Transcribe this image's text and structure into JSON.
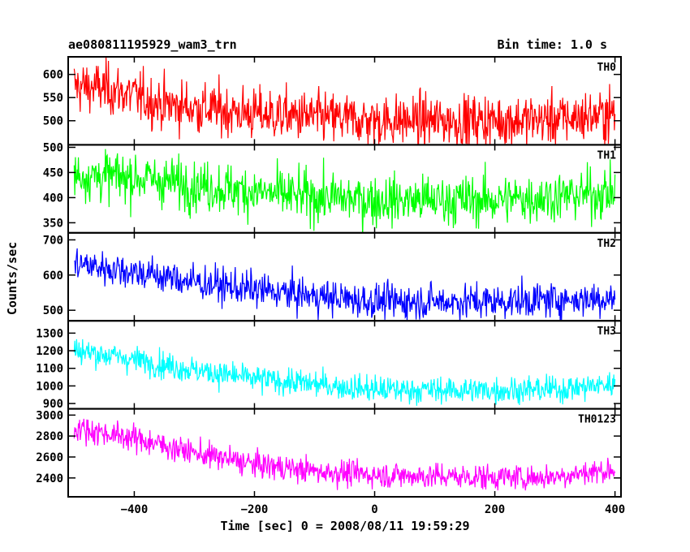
{
  "chart_data": {
    "type": "line",
    "title": "ae080811195929_wam3_trn",
    "subtitle": "Bin time: 1.0 s",
    "xlabel": "Time [sec] 0 = 2008/08/11 19:59:29",
    "ylabel": "Counts/sec",
    "xlim": [
      -510,
      410
    ],
    "x_ticks": [
      -400,
      -200,
      0,
      200,
      400
    ],
    "x_range": [
      -500,
      400
    ],
    "bin_time_s": 1.0,
    "grid": false,
    "panels": [
      {
        "name": "TH0",
        "color": "#ff0000",
        "ylim": [
          448,
          638
        ],
        "y_ticks": [
          500,
          550,
          600
        ],
        "trend": [
          [
            -500,
            575
          ],
          [
            -440,
            568
          ],
          [
            -350,
            535
          ],
          [
            -200,
            515
          ],
          [
            0,
            500
          ],
          [
            150,
            500
          ],
          [
            300,
            503
          ],
          [
            400,
            515
          ]
        ],
        "noise_sd": 28
      },
      {
        "name": "TH1",
        "color": "#00ff00",
        "ylim": [
          330,
          505
        ],
        "y_ticks": [
          350,
          400,
          450,
          500
        ],
        "trend": [
          [
            -500,
            445
          ],
          [
            -400,
            440
          ],
          [
            -300,
            425
          ],
          [
            -150,
            405
          ],
          [
            0,
            395
          ],
          [
            200,
            395
          ],
          [
            400,
            410
          ]
        ],
        "noise_sd": 25
      },
      {
        "name": "TH2",
        "color": "#0000ff",
        "ylim": [
          470,
          720
        ],
        "y_ticks": [
          500,
          600,
          700
        ],
        "trend": [
          [
            -500,
            632
          ],
          [
            -400,
            610
          ],
          [
            -300,
            580
          ],
          [
            -200,
            558
          ],
          [
            -100,
            540
          ],
          [
            0,
            525
          ],
          [
            200,
            525
          ],
          [
            400,
            535
          ]
        ],
        "noise_sd": 25
      },
      {
        "name": "TH3",
        "color": "#00ffff",
        "ylim": [
          870,
          1370
        ],
        "y_ticks": [
          900,
          1000,
          1100,
          1200,
          1300
        ],
        "trend": [
          [
            -500,
            1205
          ],
          [
            -400,
            1150
          ],
          [
            -300,
            1090
          ],
          [
            -200,
            1040
          ],
          [
            -100,
            1010
          ],
          [
            0,
            980
          ],
          [
            150,
            975
          ],
          [
            300,
            980
          ],
          [
            400,
            1010
          ]
        ],
        "noise_sd": 38
      },
      {
        "name": "TH0123",
        "color": "#ff00ff",
        "ylim": [
          2220,
          3060
        ],
        "y_ticks": [
          2400,
          2600,
          2800,
          3000
        ],
        "trend": [
          [
            -500,
            2880
          ],
          [
            -400,
            2780
          ],
          [
            -300,
            2640
          ],
          [
            -200,
            2530
          ],
          [
            -100,
            2465
          ],
          [
            0,
            2430
          ],
          [
            150,
            2410
          ],
          [
            280,
            2405
          ],
          [
            350,
            2450
          ],
          [
            400,
            2480
          ]
        ],
        "noise_sd": 62
      }
    ]
  }
}
